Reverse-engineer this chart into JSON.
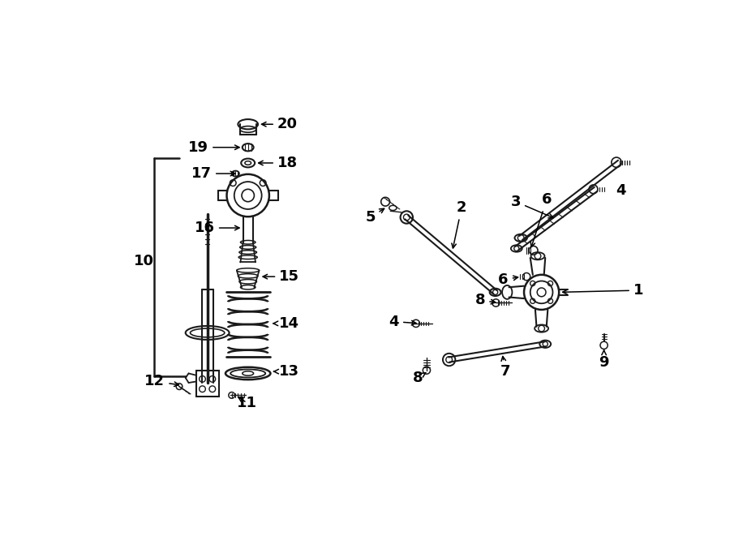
{
  "bg_color": "#ffffff",
  "line_color": "#1a1a1a",
  "fig_width": 9.0,
  "fig_height": 6.61,
  "dpi": 100,
  "fontsize": 13
}
